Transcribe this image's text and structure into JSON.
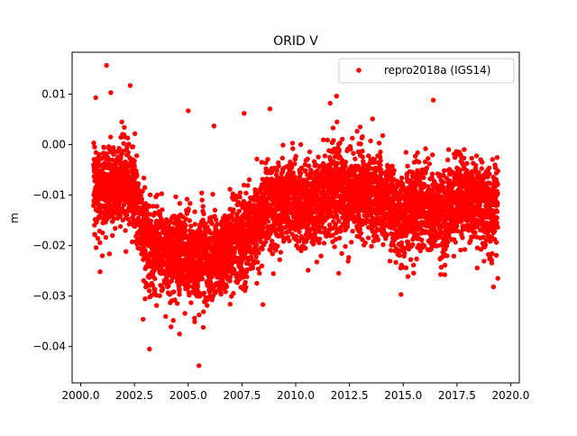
{
  "chart_data": {
    "type": "scatter",
    "title": "ORID V",
    "xlabel": "",
    "ylabel": "m",
    "xlim": [
      1999.6,
      2020.4
    ],
    "ylim": [
      -0.0472,
      0.0183
    ],
    "x_ticks": [
      2000.0,
      2002.5,
      2005.0,
      2007.5,
      2010.0,
      2012.5,
      2015.0,
      2017.5,
      2020.0
    ],
    "x_tick_labels": [
      "2000.0",
      "2002.5",
      "2005.0",
      "2007.5",
      "2010.0",
      "2012.5",
      "2015.0",
      "2017.5",
      "2020.0"
    ],
    "y_ticks": [
      0.01,
      0.0,
      -0.01,
      -0.02,
      -0.03,
      -0.04
    ],
    "y_tick_labels": [
      "0.01",
      "0.00",
      "−0.01",
      "−0.02",
      "−0.03",
      "−0.04"
    ],
    "grid": false,
    "legend_position": "top-right",
    "series": [
      {
        "name": "repro2018a (IGS14)",
        "color": "#ff0000",
        "marker": "circle",
        "trend_knots": [
          [
            2000.6,
            -0.008
          ],
          [
            2001.0,
            -0.009
          ],
          [
            2001.5,
            -0.008
          ],
          [
            2002.0,
            -0.007
          ],
          [
            2002.5,
            -0.009
          ],
          [
            2002.8,
            -0.016
          ],
          [
            2003.1,
            -0.02
          ],
          [
            2003.5,
            -0.02
          ],
          [
            2004.0,
            -0.021
          ],
          [
            2004.5,
            -0.022
          ],
          [
            2005.0,
            -0.022
          ],
          [
            2005.5,
            -0.023
          ],
          [
            2006.0,
            -0.022
          ],
          [
            2006.5,
            -0.023
          ],
          [
            2007.0,
            -0.02
          ],
          [
            2007.5,
            -0.019
          ],
          [
            2008.0,
            -0.017
          ],
          [
            2008.5,
            -0.013
          ],
          [
            2009.0,
            -0.012
          ],
          [
            2009.5,
            -0.011
          ],
          [
            2010.0,
            -0.011
          ],
          [
            2010.5,
            -0.013
          ],
          [
            2011.0,
            -0.012
          ],
          [
            2011.5,
            -0.009
          ],
          [
            2012.0,
            -0.008
          ],
          [
            2012.5,
            -0.01
          ],
          [
            2013.0,
            -0.009
          ],
          [
            2013.5,
            -0.01
          ],
          [
            2014.0,
            -0.011
          ],
          [
            2014.5,
            -0.013
          ],
          [
            2015.0,
            -0.015
          ],
          [
            2015.5,
            -0.012
          ],
          [
            2016.0,
            -0.012
          ],
          [
            2016.5,
            -0.013
          ],
          [
            2017.0,
            -0.014
          ],
          [
            2017.5,
            -0.01
          ],
          [
            2018.0,
            -0.011
          ],
          [
            2018.5,
            -0.012
          ],
          [
            2019.0,
            -0.013
          ],
          [
            2019.4,
            -0.012
          ]
        ],
        "noise_sd": 0.0042,
        "n_points": 5600,
        "outliers": [
          [
            2001.2,
            0.0157
          ],
          [
            2002.3,
            0.0117
          ],
          [
            2000.7,
            0.0093
          ],
          [
            2001.4,
            0.0103
          ],
          [
            2005.0,
            0.0067
          ],
          [
            2007.6,
            0.0062
          ],
          [
            2008.8,
            0.0071
          ],
          [
            2011.6,
            0.0082
          ],
          [
            2011.9,
            0.0096
          ],
          [
            2016.4,
            0.0088
          ],
          [
            2003.2,
            -0.0405
          ],
          [
            2004.6,
            -0.0375
          ],
          [
            2005.5,
            -0.0438
          ],
          [
            2005.3,
            -0.0351
          ],
          [
            2005.7,
            -0.0362
          ],
          [
            2004.2,
            -0.0361
          ],
          [
            2000.9,
            -0.0252
          ],
          [
            2002.9,
            -0.0346
          ],
          [
            2006.2,
            0.0037
          ],
          [
            2013.0,
            0.0035
          ],
          [
            2012.0,
            -0.0255
          ],
          [
            2014.9,
            -0.0297
          ],
          [
            2019.2,
            -0.0282
          ],
          [
            2019.4,
            -0.0265
          ]
        ]
      }
    ]
  }
}
